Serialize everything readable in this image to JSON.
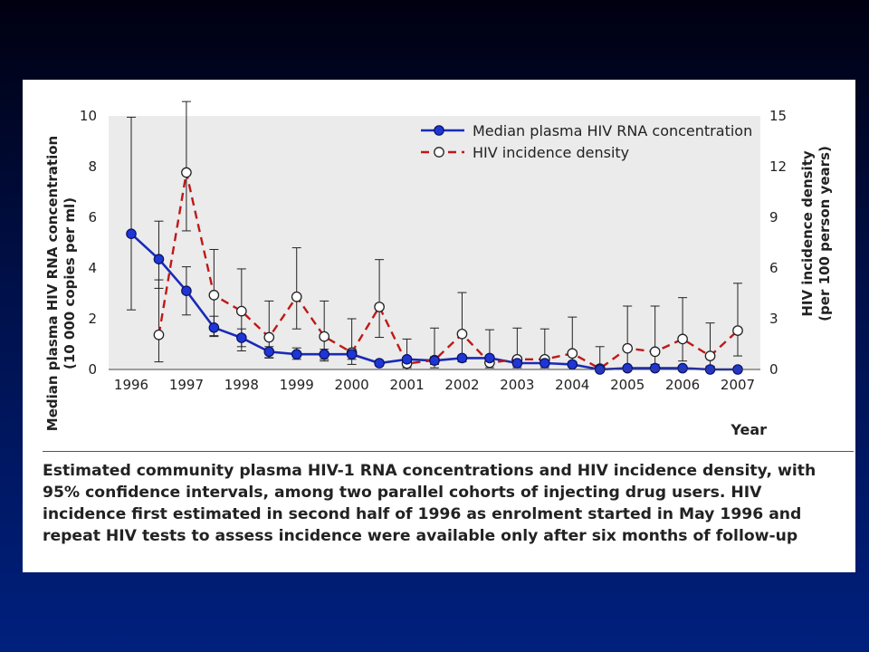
{
  "colors": {
    "plot_bg": "#ebebeb",
    "rna_line": "#1a2bb5",
    "rna_marker": "#1f36d6",
    "incidence_line": "#c01818",
    "incidence_marker": "#ffffff",
    "error_bar": "#222222",
    "text": "#222222"
  },
  "chart_data": {
    "type": "line",
    "xlabel": "Year",
    "x_ticks": [
      "1996",
      "1997",
      "1998",
      "1999",
      "2000",
      "2001",
      "2002",
      "2003",
      "2004",
      "2005",
      "2006",
      "2007"
    ],
    "xlim": [
      1996,
      2007
    ],
    "y_left": {
      "label_line1": "Median plasma HIV RNA concentration",
      "label_line2": "(10 000 copies per ml)",
      "lim": [
        0,
        10
      ],
      "ticks": [
        "0",
        "2",
        "4",
        "6",
        "8",
        "10"
      ]
    },
    "y_right": {
      "label_line1": "HIV incidence density",
      "label_line2": "(per 100 person years)",
      "lim": [
        0,
        15
      ],
      "ticks": [
        "0",
        "3",
        "6",
        "9",
        "12",
        "15"
      ]
    },
    "legend_position": "top-right",
    "grid": false,
    "series": [
      {
        "name": "Median plasma HIV RNA concentration",
        "axis": "left",
        "style": "solid, filled circles",
        "x": [
          1996,
          1996.5,
          1997,
          1997.5,
          1998,
          1998.5,
          1999,
          1999.5,
          2000,
          2000.5,
          2001,
          2001.5,
          2002,
          2002.5,
          2003,
          2003.5,
          2004,
          2004.5,
          2005,
          2005.5,
          2006,
          2006.5,
          2007
        ],
        "y": [
          5.35,
          4.35,
          3.1,
          1.65,
          1.25,
          0.7,
          0.6,
          0.6,
          0.6,
          0.25,
          0.4,
          0.35,
          0.45,
          0.45,
          0.25,
          0.25,
          0.2,
          0.0,
          0.05,
          0.05,
          0.05,
          0.0,
          0.0
        ],
        "ci_low": [
          2.35,
          3.2,
          2.15,
          1.3,
          0.9,
          0.45,
          0.4,
          0.4,
          0.4,
          0.15,
          0.3,
          0.2,
          0.3,
          0.35,
          0.15,
          0.15,
          0.1,
          0.0,
          0.0,
          0.0,
          0.0,
          0.0,
          0.0
        ],
        "ci_high": [
          9.95,
          5.85,
          4.05,
          2.1,
          1.6,
          0.9,
          0.85,
          0.8,
          0.8,
          0.35,
          0.5,
          0.5,
          0.55,
          0.55,
          0.35,
          0.35,
          0.3,
          0.05,
          0.1,
          0.1,
          0.1,
          0.05,
          0.05
        ]
      },
      {
        "name": "HIV incidence density",
        "axis": "right",
        "style": "dashed, open circles",
        "x": [
          1996.5,
          1997,
          1997.5,
          1998,
          1998.5,
          1999,
          1999.5,
          2000,
          2000.5,
          2001,
          2001.5,
          2002,
          2002.5,
          2003,
          2003.5,
          2004,
          2004.5,
          2005,
          2005.5,
          2006,
          2006.5,
          2007
        ],
        "y": [
          2.05,
          11.65,
          4.4,
          3.45,
          1.9,
          4.3,
          1.95,
          1.0,
          3.7,
          0.35,
          0.55,
          2.1,
          0.4,
          0.6,
          0.6,
          0.95,
          0.05,
          1.25,
          1.05,
          1.8,
          0.8,
          2.3
        ],
        "ci_low": [
          0.45,
          8.2,
          2.0,
          1.1,
          0.7,
          2.4,
          0.5,
          0.3,
          1.9,
          0.1,
          0.1,
          0.6,
          0.1,
          0.1,
          0.1,
          0.3,
          0.0,
          0.2,
          0.3,
          0.5,
          0.2,
          0.8
        ],
        "ci_high": [
          5.3,
          15.85,
          7.1,
          5.95,
          4.05,
          7.2,
          4.05,
          3.0,
          6.5,
          1.8,
          2.45,
          4.55,
          2.35,
          2.45,
          2.4,
          3.1,
          1.35,
          3.75,
          3.75,
          4.25,
          2.75,
          5.1
        ]
      }
    ]
  },
  "caption": "Estimated community plasma HIV-1 RNA concentrations and HIV incidence density, with 95% confidence intervals, among two parallel cohorts of injecting drug users. HIV incidence first estimated in second half of 1996 as enrolment started in May 1996 and repeat HIV tests to assess incidence were available only after six months of follow-up"
}
